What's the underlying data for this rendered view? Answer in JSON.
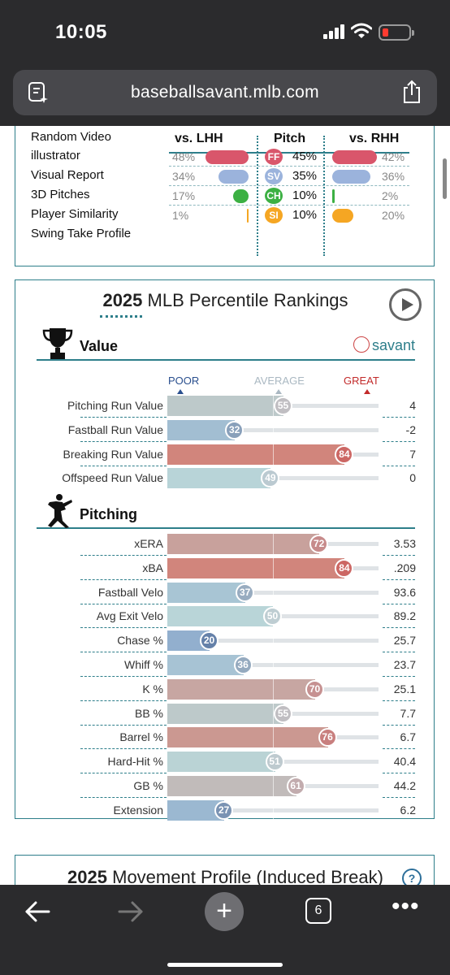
{
  "status_bar": {
    "time": "10:05"
  },
  "browser": {
    "url": "baseballsavant.mlb.com",
    "tab_count": "6"
  },
  "pitch_mix": {
    "menu_items": [
      "Random Video",
      "illustrator",
      "Visual Report",
      "3D Pitches",
      "Player Similarity",
      "Swing Take Profile"
    ],
    "headers": {
      "lhh": "vs. LHH",
      "pitch": "Pitch",
      "rhh": "vs. RHH"
    },
    "rows": [
      {
        "lhh": "48%",
        "lhh_value": 48,
        "code": "FF",
        "pitch_pct": "45%",
        "rhh": "42%",
        "rhh_value": 42,
        "color": "#d9566b"
      },
      {
        "lhh": "34%",
        "lhh_value": 34,
        "code": "SV",
        "pitch_pct": "35%",
        "rhh": "36%",
        "rhh_value": 36,
        "color": "#9bb3dc"
      },
      {
        "lhh": "17%",
        "lhh_value": 17,
        "code": "CH",
        "pitch_pct": "10%",
        "rhh": "2%",
        "rhh_value": 2,
        "color": "#3cb043"
      },
      {
        "lhh": "1%",
        "lhh_value": 1,
        "code": "SI",
        "pitch_pct": "10%",
        "rhh": "20%",
        "rhh_value": 20,
        "color": "#f5a623"
      }
    ]
  },
  "percentiles": {
    "title_year": "2025",
    "title_rest": "MLB Percentile Rankings",
    "value_section": {
      "label": "Value",
      "logo": "savant",
      "scale": {
        "poor": "POOR",
        "average": "AVERAGE",
        "great": "GREAT"
      },
      "metrics": [
        {
          "label": "Pitching Run Value",
          "percentile": 55,
          "value": "4"
        },
        {
          "label": "Fastball Run Value",
          "percentile": 32,
          "value": "-2"
        },
        {
          "label": "Breaking Run Value",
          "percentile": 84,
          "value": "7"
        },
        {
          "label": "Offspeed Run Value",
          "percentile": 49,
          "value": "0"
        }
      ]
    },
    "pitching_section": {
      "label": "Pitching",
      "metrics": [
        {
          "label": "xERA",
          "percentile": 72,
          "value": "3.53"
        },
        {
          "label": "xBA",
          "percentile": 84,
          "value": ".209"
        },
        {
          "label": "Fastball Velo",
          "percentile": 37,
          "value": "93.6"
        },
        {
          "label": "Avg Exit Velo",
          "percentile": 50,
          "value": "89.2"
        },
        {
          "label": "Chase %",
          "percentile": 20,
          "value": "25.7"
        },
        {
          "label": "Whiff %",
          "percentile": 36,
          "value": "23.7"
        },
        {
          "label": "K %",
          "percentile": 70,
          "value": "25.1"
        },
        {
          "label": "BB %",
          "percentile": 55,
          "value": "7.7"
        },
        {
          "label": "Barrel %",
          "percentile": 76,
          "value": "6.7"
        },
        {
          "label": "Hard-Hit %",
          "percentile": 51,
          "value": "40.4"
        },
        {
          "label": "GB %",
          "percentile": 61,
          "value": "44.2"
        },
        {
          "label": "Extension",
          "percentile": 27,
          "value": "6.2"
        }
      ]
    }
  },
  "movement": {
    "title_year": "2025",
    "title_rest": "Movement Profile (Induced Break)",
    "help": "?"
  },
  "colors": {
    "accent": "#2d7e8a",
    "poor": "#2a4f8e",
    "great": "#c22b2b"
  }
}
